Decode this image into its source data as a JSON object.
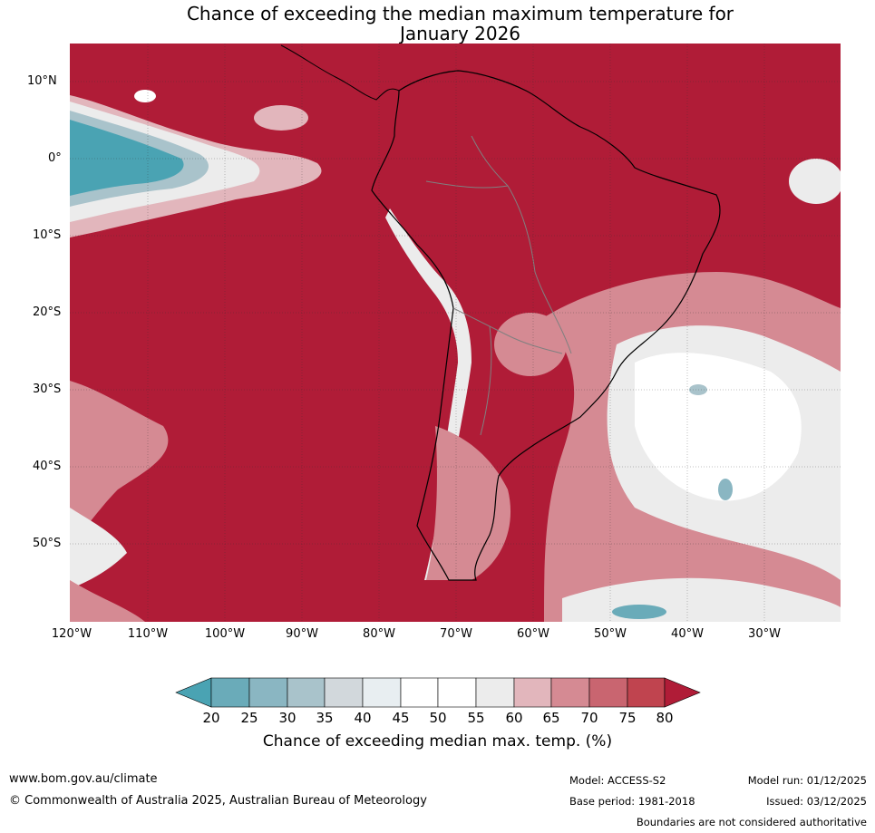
{
  "title": {
    "line1": "Chance of exceeding the median maximum temperature for",
    "line2": "January 2026"
  },
  "map": {
    "region": "South America and surrounding oceans",
    "lat_labels": [
      "10°N",
      "0°",
      "10°S",
      "20°S",
      "30°S",
      "40°S",
      "50°S"
    ],
    "lon_labels": [
      "120°W",
      "110°W",
      "100°W",
      "90°W",
      "80°W",
      "70°W",
      "60°W",
      "50°W",
      "40°W",
      "30°W"
    ],
    "colors": {
      "very_high": "#b01c37",
      "high_75": "#c0444f",
      "high_70": "#c96570",
      "high_65": "#d58a93",
      "high_60": "#e2b6bc",
      "neutral_55": "#ececec",
      "neutral_50": "#ffffff",
      "low_45": "#e8eef1",
      "low_40": "#d2d8dc",
      "low_35": "#a9c3cb",
      "low_30": "#8ab6c2",
      "low_25": "#6aabb9",
      "very_low": "#4aa3b3"
    }
  },
  "colorbar": {
    "ticks": [
      "20",
      "25",
      "30",
      "35",
      "40",
      "45",
      "50",
      "55",
      "60",
      "65",
      "70",
      "75",
      "80"
    ],
    "label": "Chance of exceeding median max. temp. (%)"
  },
  "footer": {
    "url": "www.bom.gov.au/climate",
    "copyright": "© Commonwealth of Australia 2025, Australian Bureau of Meteorology",
    "model": "Model: ACCESS-S2",
    "base_period": "Base period: 1981-2018",
    "model_run": "Model run: 01/12/2025",
    "issued": "Issued: 03/12/2025",
    "disclaimer": "Boundaries are not considered authoritative"
  }
}
